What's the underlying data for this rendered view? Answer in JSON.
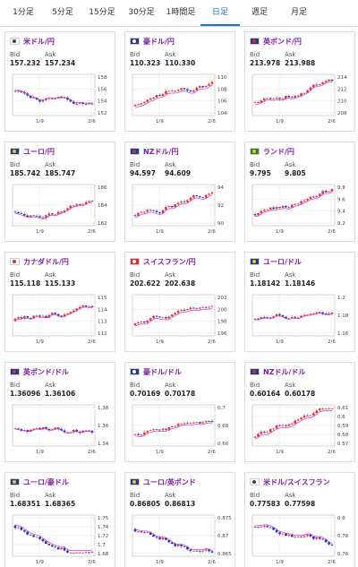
{
  "tabs": [
    {
      "label": "1分足",
      "active": false
    },
    {
      "label": "5分足",
      "active": false
    },
    {
      "label": "15分足",
      "active": false
    },
    {
      "label": "30分足",
      "active": false
    },
    {
      "label": "1時間足",
      "active": false
    },
    {
      "label": "日足",
      "active": true
    },
    {
      "label": "週足",
      "active": false
    },
    {
      "label": "月足",
      "active": false
    }
  ],
  "bid_label": "Bid",
  "ask_label": "Ask",
  "x_ticks": [
    "1/9",
    "2/6"
  ],
  "colors": {
    "up": "#e53935",
    "down": "#1e3aa8",
    "ma": "#d633d6",
    "accent": "#1a73c8",
    "title": "#7a1fa2"
  },
  "cards": [
    {
      "pair": "米ドル/円",
      "flag": "us",
      "bid": "157.232",
      "ask": "157.234",
      "y_ticks": [
        "158",
        "156",
        "154",
        "152"
      ]
    },
    {
      "pair": "豪ドル/円",
      "flag": "au",
      "bid": "110.323",
      "ask": "110.330",
      "y_ticks": [
        "110",
        "108",
        "106",
        "104"
      ]
    },
    {
      "pair": "英ポンド/円",
      "flag": "gb",
      "bid": "213.978",
      "ask": "213.988",
      "y_ticks": [
        "214",
        "212",
        "210",
        "208"
      ]
    },
    {
      "pair": "ユーロ/円",
      "flag": "eu",
      "bid": "185.742",
      "ask": "185.747",
      "y_ticks": [
        "186",
        "184",
        "182"
      ]
    },
    {
      "pair": "NZドル/円",
      "flag": "nz",
      "bid": "94.597",
      "ask": "94.609",
      "y_ticks": [
        "94",
        "92",
        "90"
      ]
    },
    {
      "pair": "ランド/円",
      "flag": "za",
      "bid": "9.795",
      "ask": "9.805",
      "y_ticks": [
        "9.8",
        "9.6",
        "9.4",
        "9.2"
      ]
    },
    {
      "pair": "カナダドル/円",
      "flag": "ca",
      "bid": "115.118",
      "ask": "115.133",
      "y_ticks": [
        "115",
        "114",
        "113",
        "112"
      ]
    },
    {
      "pair": "スイスフラン/円",
      "flag": "ch",
      "bid": "202.622",
      "ask": "202.638",
      "y_ticks": [
        "202",
        "200",
        "198",
        "196"
      ]
    },
    {
      "pair": "ユーロ/ドル",
      "flag": "eu",
      "bid": "1.18142",
      "ask": "1.18146",
      "y_ticks": [
        "1.2",
        "1.18",
        "1.16"
      ]
    },
    {
      "pair": "英ポンド/ドル",
      "flag": "gb",
      "bid": "1.36096",
      "ask": "1.36106",
      "y_ticks": [
        "1.38",
        "1.36",
        "1.34"
      ]
    },
    {
      "pair": "豪ドル/ドル",
      "flag": "au",
      "bid": "0.70169",
      "ask": "0.70178",
      "y_ticks": [
        "0.7",
        "0.68",
        "0.66"
      ]
    },
    {
      "pair": "NZドル/ドル",
      "flag": "nz",
      "bid": "0.60164",
      "ask": "0.60178",
      "y_ticks": [
        "0.61",
        "0.6",
        "0.59",
        "0.58",
        "0.57"
      ]
    },
    {
      "pair": "ユーロ/豪ドル",
      "flag": "eu",
      "bid": "1.68351",
      "ask": "1.68365",
      "y_ticks": [
        "1.75",
        "1.74",
        "1.72",
        "1.7",
        "1.68"
      ]
    },
    {
      "pair": "ユーロ/英ポンド",
      "flag": "eu",
      "bid": "0.86805",
      "ask": "0.86813",
      "y_ticks": [
        "0.875",
        "0.87",
        "0.865"
      ]
    },
    {
      "pair": "米ドル/スイスフラン",
      "flag": "us",
      "bid": "0.77583",
      "ask": "0.77598",
      "y_ticks": [
        "0.8",
        "0.78",
        "0.76"
      ]
    }
  ]
}
